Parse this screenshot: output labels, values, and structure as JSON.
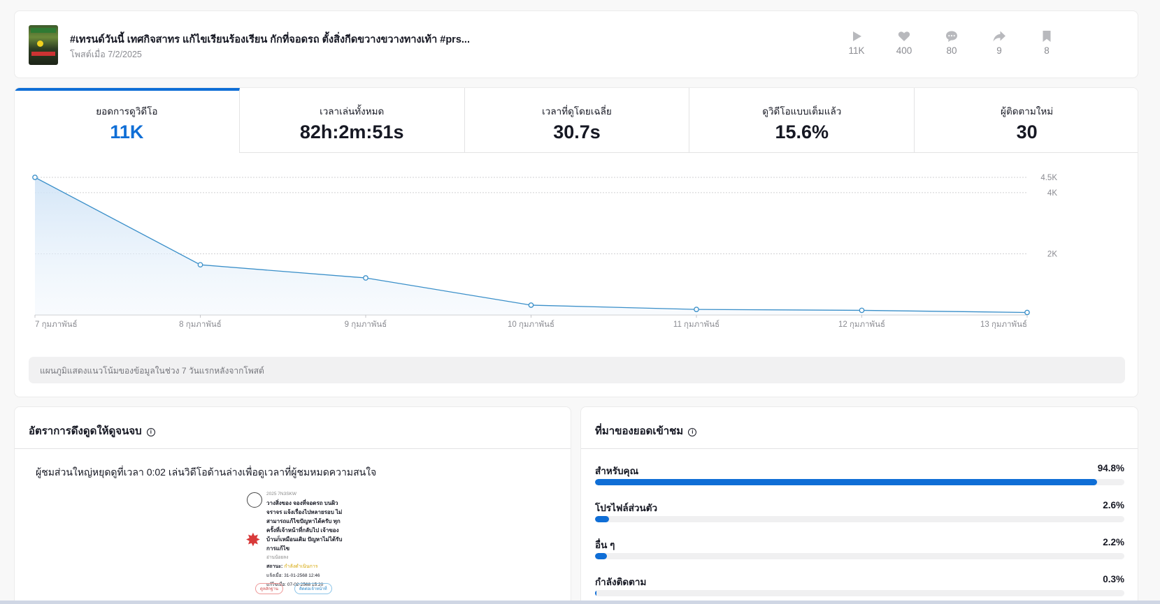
{
  "post": {
    "title": "#เทรนด์วันนี้ เทศกิจสาทร แก้ไขเรียนร้องเรียน กักที่จอดรถ ตั้งสิ่งกีดขวางขวางทางเท้า #prs...",
    "date": "โพสต์เมื่อ 7/2/2025",
    "stats": [
      {
        "icon": "play-icon",
        "value": "11K"
      },
      {
        "icon": "heart-icon",
        "value": "400"
      },
      {
        "icon": "comment-icon",
        "value": "80"
      },
      {
        "icon": "share-icon",
        "value": "9"
      },
      {
        "icon": "bookmark-icon",
        "value": "8"
      }
    ]
  },
  "metrics": {
    "tabs": [
      {
        "label": "ยอดการดูวิดีโอ",
        "value": "11K",
        "active": true
      },
      {
        "label": "เวลาเล่นทั้งหมด",
        "value": "82h:2m:51s"
      },
      {
        "label": "เวลาที่ดูโดยเฉลี่ย",
        "value": "30.7s"
      },
      {
        "label": "ดูวิดีโอแบบเต็มแล้ว",
        "value": "15.6%"
      },
      {
        "label": "ผู้ติดตามใหม่",
        "value": "30"
      }
    ],
    "note": "แผนภูมิแสดงแนวโน้มของข้อมูลในช่วง 7 วันแรกหลังจากโพสต์"
  },
  "chart_data": {
    "type": "area",
    "x": [
      "7 กุมภาพันธ์",
      "8 กุมภาพันธ์",
      "9 กุมภาพันธ์",
      "10 กุมภาพันธ์",
      "11 กุมภาพันธ์",
      "12 กุมภาพันธ์",
      "13 กุมภาพันธ์"
    ],
    "values": [
      4500,
      1640,
      1210,
      320,
      180,
      150,
      80
    ],
    "y_ticks": [
      {
        "value": 2000,
        "label": "2K"
      },
      {
        "value": 4000,
        "label": "4K"
      },
      {
        "value": 4500,
        "label": "4.5K"
      }
    ],
    "ylim": [
      0,
      4500
    ],
    "color": "#3a8fc9",
    "grid": true
  },
  "retention": {
    "title": "อัตราการดึงดูดให้ดูจนจบ",
    "text": "ผู้ชมส่วนใหญ่หยุดดูที่เวลา 0:02 เล่นวิดีโอด้านล่างเพื่อดูเวลาที่ผู้ชมหมดความสนใจ",
    "preview": {
      "year": "2025 7N3SKW",
      "body": [
        "วางสิ่งของ จองที่จอดรถ บนผิว",
        "จราจร แจ้งเรื่องไปหลายรอบ ไม่",
        "สามารถแก้ไขปัญหาได้ครับ ทุก",
        "ครั้งที่เจ้าหน้าที่กลับไป เจ้าของ",
        "บ้านก็เหมือนเดิม ปัญหาไม่ได้รับ",
        "การแก้ไข"
      ],
      "read_more": "อ่านน้อยลง",
      "status_label": "สถานะ:",
      "status_value": "กำลังดำเนินการ",
      "notified": "แจ้งเมื่อ: 31-01-2568 12:46",
      "edited": "แก้ไขเมื่อ: 07-02-2568 15:20",
      "btn_left": "ดูหลักฐาน",
      "btn_right": "ติดต่อเจ้าหน้าที่"
    }
  },
  "traffic": {
    "title": "ที่มาของยอดเข้าชม",
    "sources": [
      {
        "name": "สำหรับคุณ",
        "pct": "94.8%",
        "value": 94.8
      },
      {
        "name": "โปรไฟล์ส่วนตัว",
        "pct": "2.6%",
        "value": 2.6
      },
      {
        "name": "อื่น ๆ",
        "pct": "2.2%",
        "value": 2.2
      },
      {
        "name": "กำลังติดตาม",
        "pct": "0.3%",
        "value": 0.3
      }
    ]
  }
}
